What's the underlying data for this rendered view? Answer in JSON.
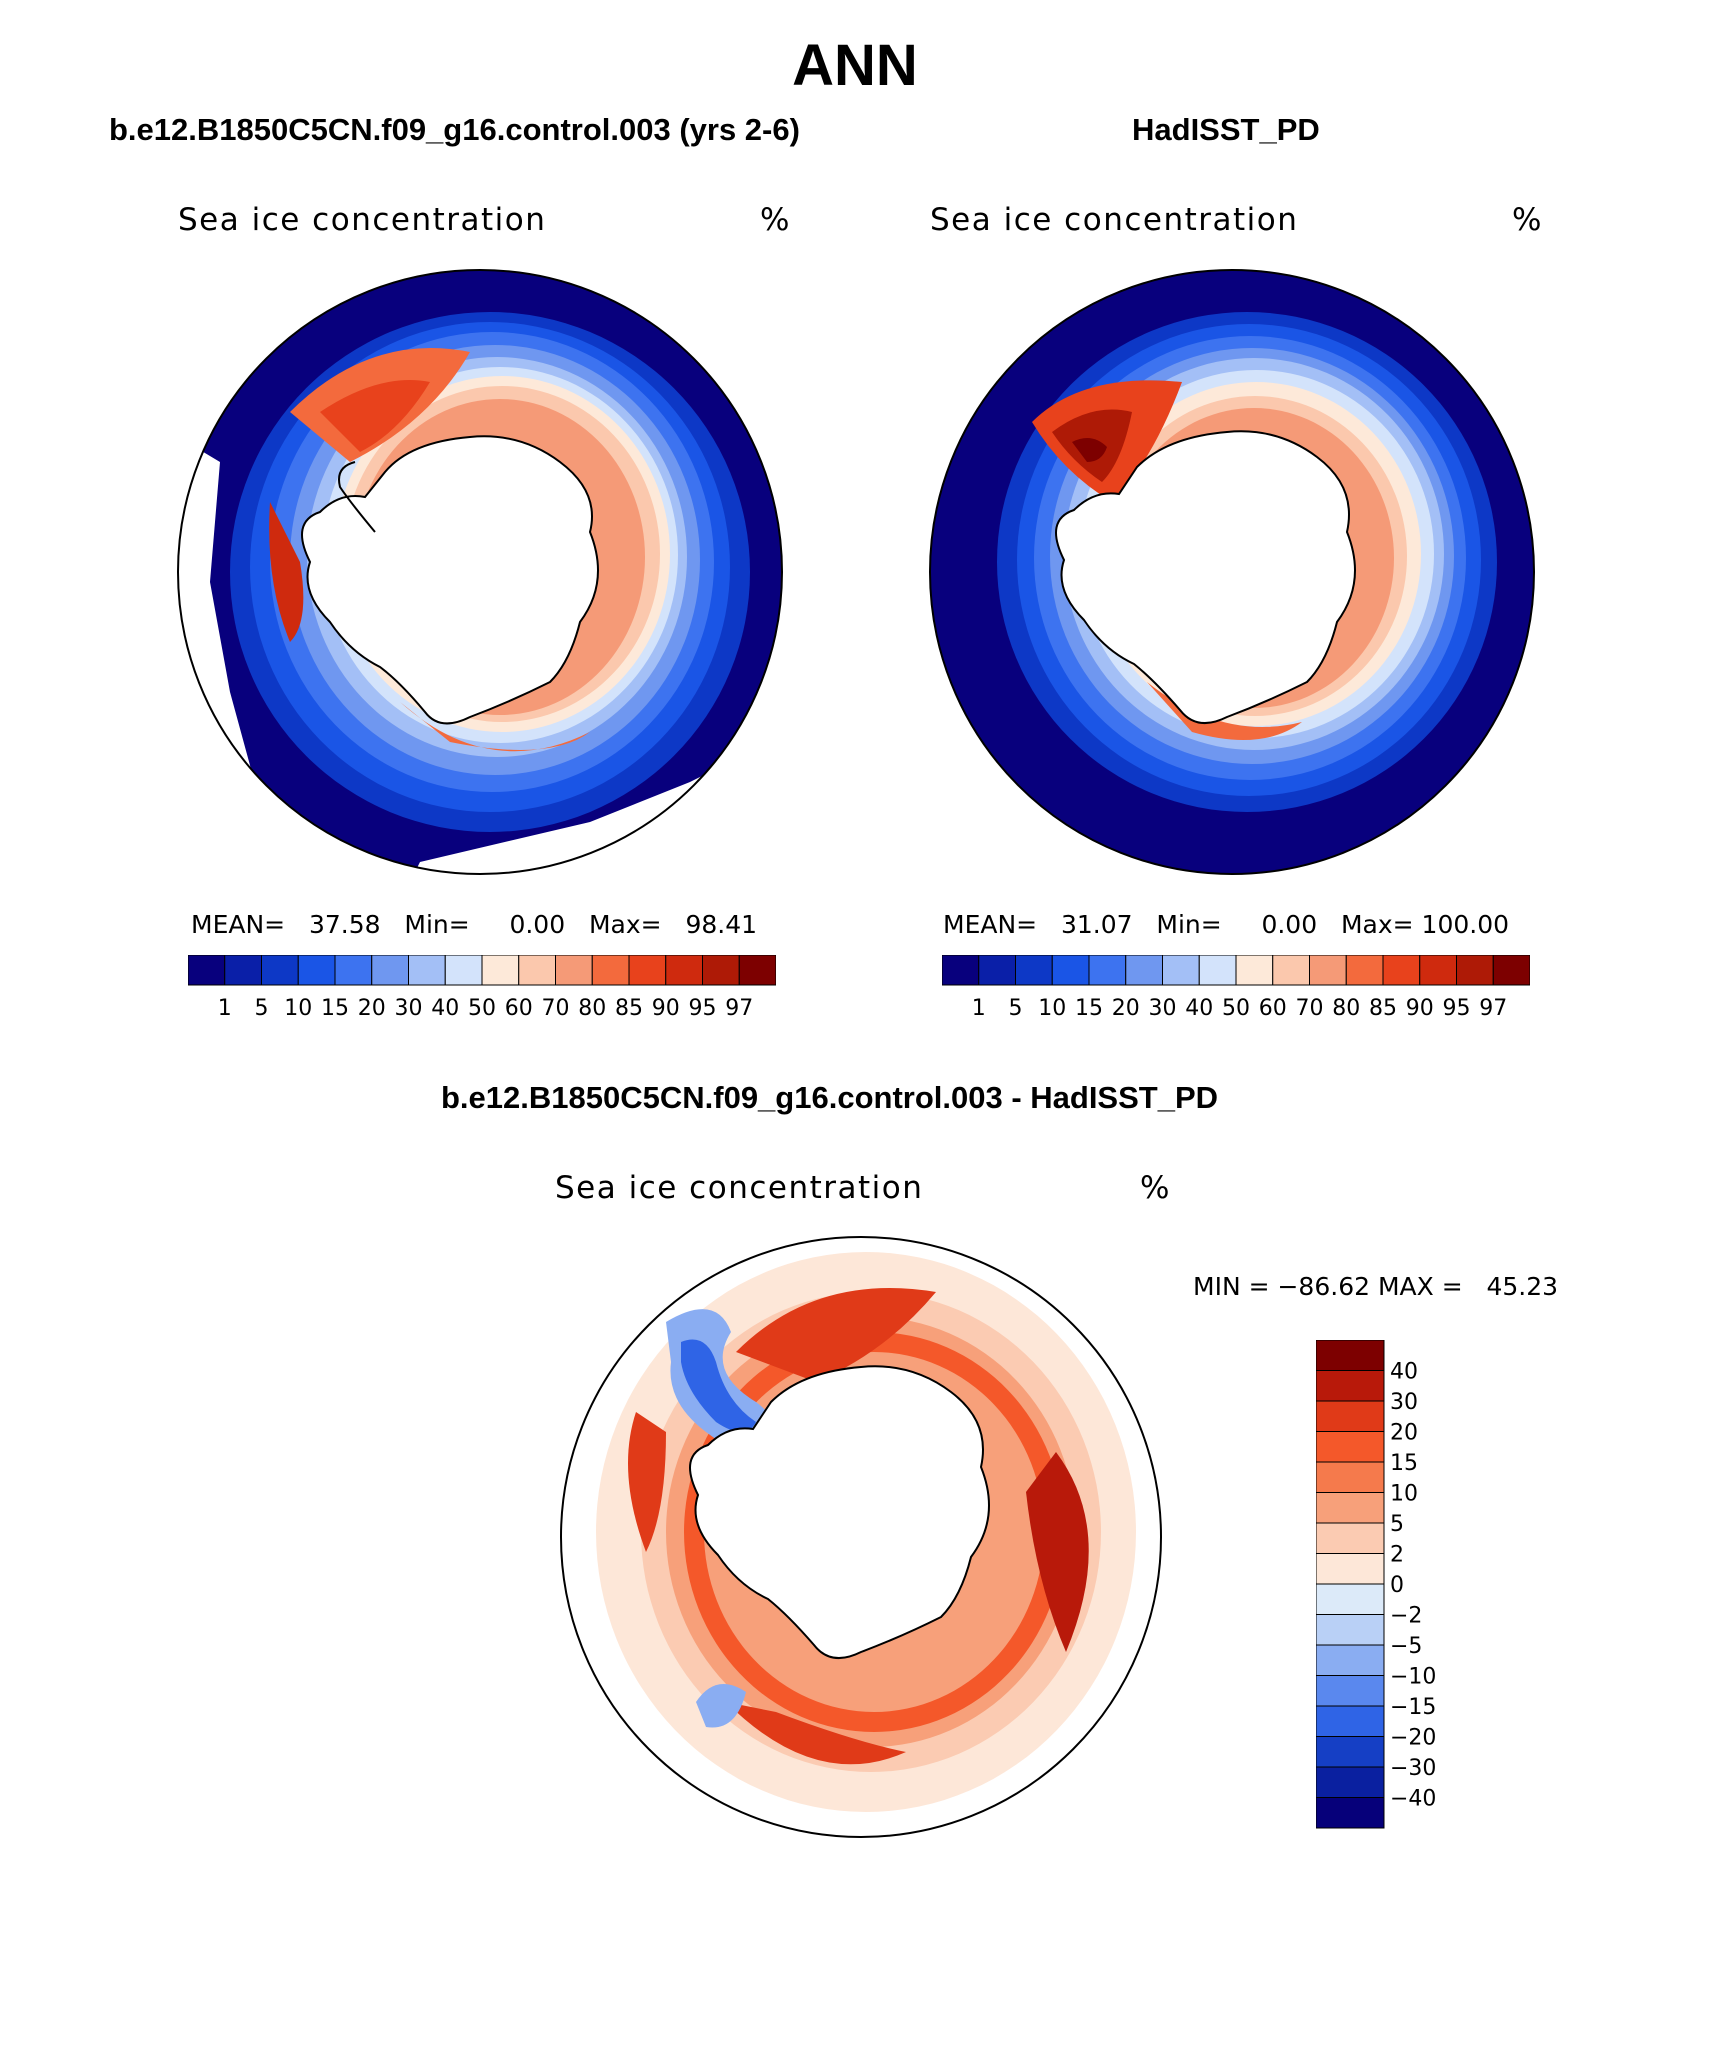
{
  "figure": {
    "title": "ANN"
  },
  "panel_left": {
    "case_title": "b.e12.B1850C5CN.f09_g16.control.003 (yrs 2-6)",
    "variable": "Sea ice concentration",
    "units": "%",
    "mean_label": "MEAN=",
    "mean": "37.58",
    "min_label": "Min=",
    "min": "0.00",
    "max_label": "Max=",
    "max": "98.41"
  },
  "panel_right": {
    "case_title": "HadISST_PD",
    "variable": "Sea ice concentration",
    "units": "%",
    "mean_label": "MEAN=",
    "mean": "31.07",
    "min_label": "Min=",
    "min": "0.00",
    "max_label": "Max=",
    "max": "100.00"
  },
  "panel_diff": {
    "case_title": "b.e12.B1850C5CN.f09_g16.control.003 - HadISST_PD",
    "variable": "Sea ice concentration",
    "units": "%",
    "minmax": "MIN = −86.62 MAX =   45.23"
  },
  "colorbar_levels": {
    "labels": [
      "1",
      "5",
      "10",
      "15",
      "20",
      "30",
      "40",
      "50",
      "60",
      "70",
      "80",
      "85",
      "90",
      "95",
      "97"
    ],
    "colors": [
      "#08007d",
      "#0a1fa8",
      "#0d38c6",
      "#1a55e6",
      "#3d73f0",
      "#6f97f0",
      "#a3bff6",
      "#d3e3fb",
      "#fde9d9",
      "#fbc8ad",
      "#f59a77",
      "#f36a3d",
      "#e8421c",
      "#cf2a0e",
      "#ae1a06",
      "#7d0000"
    ]
  },
  "diff_colorbar": {
    "labels": [
      "40",
      "30",
      "20",
      "15",
      "10",
      "5",
      "2",
      "0",
      "−2",
      "−5",
      "−10",
      "−15",
      "−20",
      "−30",
      "−40"
    ],
    "colors": [
      "#7d0000",
      "#b8190a",
      "#e03a18",
      "#f4582a",
      "#f57a4c",
      "#f7a07a",
      "#fbcbb2",
      "#fde7d8",
      "#dceaf9",
      "#b9d0f6",
      "#8aadf2",
      "#5a88ee",
      "#2f64e6",
      "#153fc5",
      "#0a20a0",
      "#06007a"
    ]
  },
  "chart_data": [
    {
      "type": "heatmap",
      "title": "b.e12.B1850C5CN.f09_g16.control.003 (yrs 2-6)",
      "subtitle": "Sea ice concentration",
      "units": "%",
      "projection": "south-polar stereographic",
      "mean": 37.58,
      "min": 0.0,
      "max": 98.41,
      "levels": [
        1,
        5,
        10,
        15,
        20,
        30,
        40,
        50,
        60,
        70,
        80,
        85,
        90,
        95,
        97
      ]
    },
    {
      "type": "heatmap",
      "title": "HadISST_PD",
      "subtitle": "Sea ice concentration",
      "units": "%",
      "projection": "south-polar stereographic",
      "mean": 31.07,
      "min": 0.0,
      "max": 100.0,
      "levels": [
        1,
        5,
        10,
        15,
        20,
        30,
        40,
        50,
        60,
        70,
        80,
        85,
        90,
        95,
        97
      ]
    },
    {
      "type": "heatmap",
      "title": "b.e12.B1850C5CN.f09_g16.control.003 - HadISST_PD",
      "subtitle": "Sea ice concentration",
      "units": "%",
      "projection": "south-polar stereographic",
      "min": -86.62,
      "max": 45.23,
      "levels": [
        -40,
        -30,
        -20,
        -15,
        -10,
        -5,
        -2,
        0,
        2,
        5,
        10,
        15,
        20,
        30,
        40
      ]
    }
  ]
}
